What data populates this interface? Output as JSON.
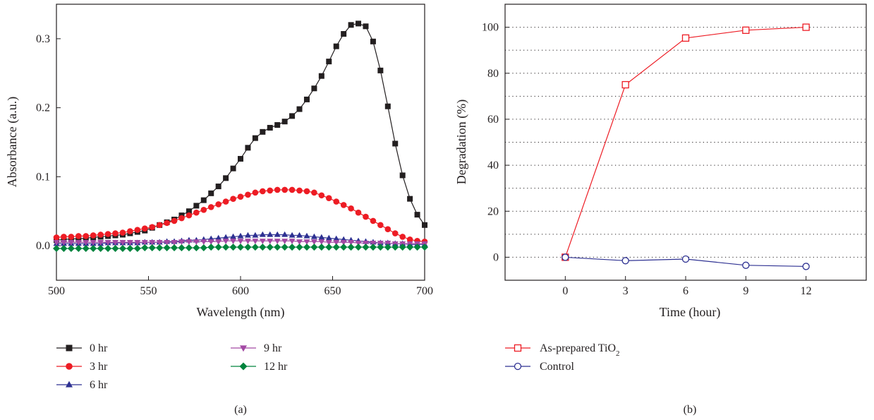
{
  "chart_data": [
    {
      "type": "line",
      "panel_label": "(a)",
      "xlabel": "Wavelength (nm)",
      "ylabel": "Absorbance (a.u.)",
      "xlim": [
        500,
        700
      ],
      "ylim": [
        -0.05,
        0.35
      ],
      "x_ticks": [
        500,
        550,
        600,
        650,
        700
      ],
      "x_tick_labels": [
        "500",
        "550",
        "600",
        "650",
        "700"
      ],
      "y_ticks": [
        0.0,
        0.1,
        0.2,
        0.3
      ],
      "y_tick_labels": [
        "0.0",
        "0.1",
        "0.2",
        "0.3"
      ],
      "grid": false,
      "legend_position": "bottom",
      "x": [
        500,
        504,
        508,
        512,
        516,
        520,
        524,
        528,
        532,
        536,
        540,
        544,
        548,
        552,
        556,
        560,
        564,
        568,
        572,
        576,
        580,
        584,
        588,
        592,
        596,
        600,
        604,
        608,
        612,
        616,
        620,
        624,
        628,
        632,
        636,
        640,
        644,
        648,
        652,
        656,
        660,
        664,
        668,
        672,
        676,
        680,
        684,
        688,
        692,
        696,
        700
      ],
      "series": [
        {
          "name": "0 hr",
          "color": "#231f20",
          "marker": "square",
          "values": [
            0.008,
            0.009,
            0.01,
            0.01,
            0.011,
            0.012,
            0.013,
            0.014,
            0.015,
            0.016,
            0.018,
            0.02,
            0.022,
            0.026,
            0.03,
            0.034,
            0.038,
            0.044,
            0.05,
            0.058,
            0.066,
            0.076,
            0.086,
            0.098,
            0.112,
            0.126,
            0.142,
            0.156,
            0.165,
            0.171,
            0.175,
            0.18,
            0.188,
            0.198,
            0.212,
            0.228,
            0.246,
            0.267,
            0.289,
            0.307,
            0.32,
            0.322,
            0.318,
            0.296,
            0.254,
            0.202,
            0.148,
            0.102,
            0.068,
            0.045,
            0.03
          ]
        },
        {
          "name": "3 hr",
          "color": "#ed1c24",
          "marker": "circle",
          "values": [
            0.012,
            0.013,
            0.013,
            0.014,
            0.014,
            0.015,
            0.016,
            0.017,
            0.018,
            0.019,
            0.021,
            0.023,
            0.025,
            0.027,
            0.03,
            0.033,
            0.036,
            0.04,
            0.044,
            0.048,
            0.052,
            0.056,
            0.06,
            0.064,
            0.068,
            0.071,
            0.074,
            0.077,
            0.079,
            0.08,
            0.081,
            0.081,
            0.081,
            0.08,
            0.079,
            0.077,
            0.073,
            0.069,
            0.064,
            0.059,
            0.054,
            0.048,
            0.042,
            0.036,
            0.03,
            0.024,
            0.018,
            0.013,
            0.009,
            0.007,
            0.006
          ]
        },
        {
          "name": "6 hr",
          "color": "#2e3192",
          "marker": "triangle-up",
          "values": [
            0.003,
            0.003,
            0.003,
            0.003,
            0.003,
            0.003,
            0.003,
            0.004,
            0.004,
            0.004,
            0.004,
            0.004,
            0.005,
            0.005,
            0.005,
            0.006,
            0.006,
            0.007,
            0.008,
            0.008,
            0.009,
            0.01,
            0.011,
            0.012,
            0.013,
            0.014,
            0.015,
            0.015,
            0.016,
            0.016,
            0.016,
            0.016,
            0.015,
            0.015,
            0.014,
            0.013,
            0.012,
            0.011,
            0.01,
            0.009,
            0.008,
            0.007,
            0.006,
            0.005,
            0.004,
            0.004,
            0.003,
            0.003,
            0.002,
            0.002,
            0.002
          ]
        },
        {
          "name": "9 hr",
          "color": "#a349a4",
          "marker": "triangle-down",
          "values": [
            0.005,
            0.005,
            0.005,
            0.005,
            0.005,
            0.005,
            0.005,
            0.005,
            0.005,
            0.005,
            0.005,
            0.005,
            0.005,
            0.005,
            0.005,
            0.005,
            0.005,
            0.006,
            0.006,
            0.006,
            0.006,
            0.006,
            0.006,
            0.007,
            0.007,
            0.007,
            0.007,
            0.007,
            0.007,
            0.007,
            0.007,
            0.007,
            0.007,
            0.006,
            0.006,
            0.006,
            0.006,
            0.005,
            0.005,
            0.005,
            0.005,
            0.004,
            0.004,
            0.004,
            0.004,
            0.004,
            0.003,
            0.003,
            0.003,
            0.003,
            0.003
          ]
        },
        {
          "name": "12 hr",
          "color": "#00843d",
          "marker": "diamond",
          "values": [
            -0.004,
            -0.004,
            -0.004,
            -0.004,
            -0.004,
            -0.004,
            -0.004,
            -0.004,
            -0.004,
            -0.004,
            -0.004,
            -0.004,
            -0.003,
            -0.003,
            -0.003,
            -0.003,
            -0.003,
            -0.003,
            -0.003,
            -0.003,
            -0.003,
            -0.002,
            -0.002,
            -0.002,
            -0.002,
            -0.002,
            -0.002,
            -0.002,
            -0.002,
            -0.002,
            -0.002,
            -0.002,
            -0.002,
            -0.002,
            -0.002,
            -0.002,
            -0.002,
            -0.002,
            -0.002,
            -0.002,
            -0.002,
            -0.002,
            -0.002,
            -0.002,
            -0.002,
            -0.002,
            -0.002,
            -0.002,
            -0.002,
            -0.002,
            -0.002
          ]
        }
      ]
    },
    {
      "type": "line",
      "panel_label": "(b)",
      "xlabel": "Time (hour)",
      "ylabel": "Degradation (%)",
      "xlim": [
        -3,
        15
      ],
      "ylim": [
        -10,
        110
      ],
      "x_ticks": [
        0,
        3,
        6,
        9,
        12
      ],
      "x_tick_labels": [
        "0",
        "3",
        "6",
        "9",
        "12"
      ],
      "y_ticks": [
        0,
        20,
        40,
        60,
        80,
        100
      ],
      "y_tick_labels": [
        "0",
        "20",
        "40",
        "60",
        "80",
        "100"
      ],
      "grid": true,
      "grid_style": "dotted horizontal",
      "legend_position": "bottom",
      "x": [
        0,
        3,
        6,
        9,
        12
      ],
      "series": [
        {
          "name": "As-prepared TiO",
          "name_subscript": "2",
          "color": "#ed1c24",
          "marker": "square-open",
          "values": [
            0,
            75,
            95.3,
            98.7,
            100
          ]
        },
        {
          "name": "Control",
          "color": "#2e3192",
          "marker": "circle-open",
          "values": [
            0,
            -1.5,
            -0.8,
            -3.5,
            -4
          ]
        }
      ]
    }
  ]
}
